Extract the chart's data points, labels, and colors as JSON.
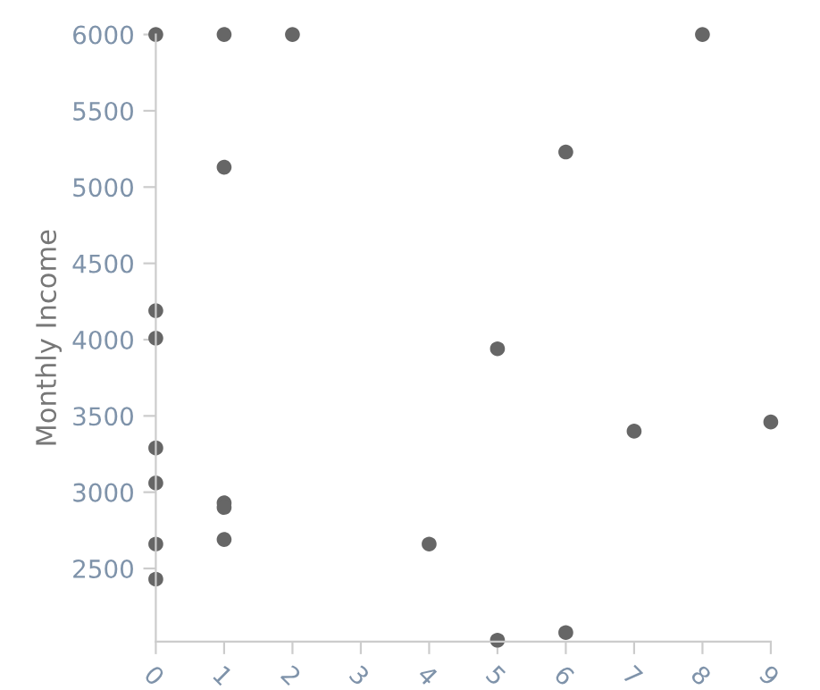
{
  "chart_data": {
    "type": "scatter",
    "ylabel": "Monthly Income",
    "series": [
      {
        "color": "#666666",
        "x": [
          0,
          0,
          0,
          0,
          0,
          0,
          0,
          1,
          1,
          1,
          1,
          1,
          2,
          4,
          5,
          5,
          6,
          6,
          7,
          8,
          9
        ],
        "values": [
          6000,
          4190,
          4010,
          3290,
          3060,
          2660,
          2430,
          6000,
          5130,
          2930,
          2900,
          2690,
          6000,
          2660,
          3940,
          2030,
          5230,
          2080,
          3400,
          6000,
          3460
        ]
      }
    ],
    "xlim": [
      0,
      9
    ],
    "xticks": [
      0,
      1,
      2,
      3,
      4,
      5,
      6,
      7,
      8,
      9
    ],
    "ylim": [
      2020,
      6000
    ],
    "yticks": [
      2500,
      3000,
      3500,
      4000,
      4500,
      5000,
      5500,
      6000
    ],
    "grid": false,
    "legend": false,
    "marker": "circle"
  }
}
